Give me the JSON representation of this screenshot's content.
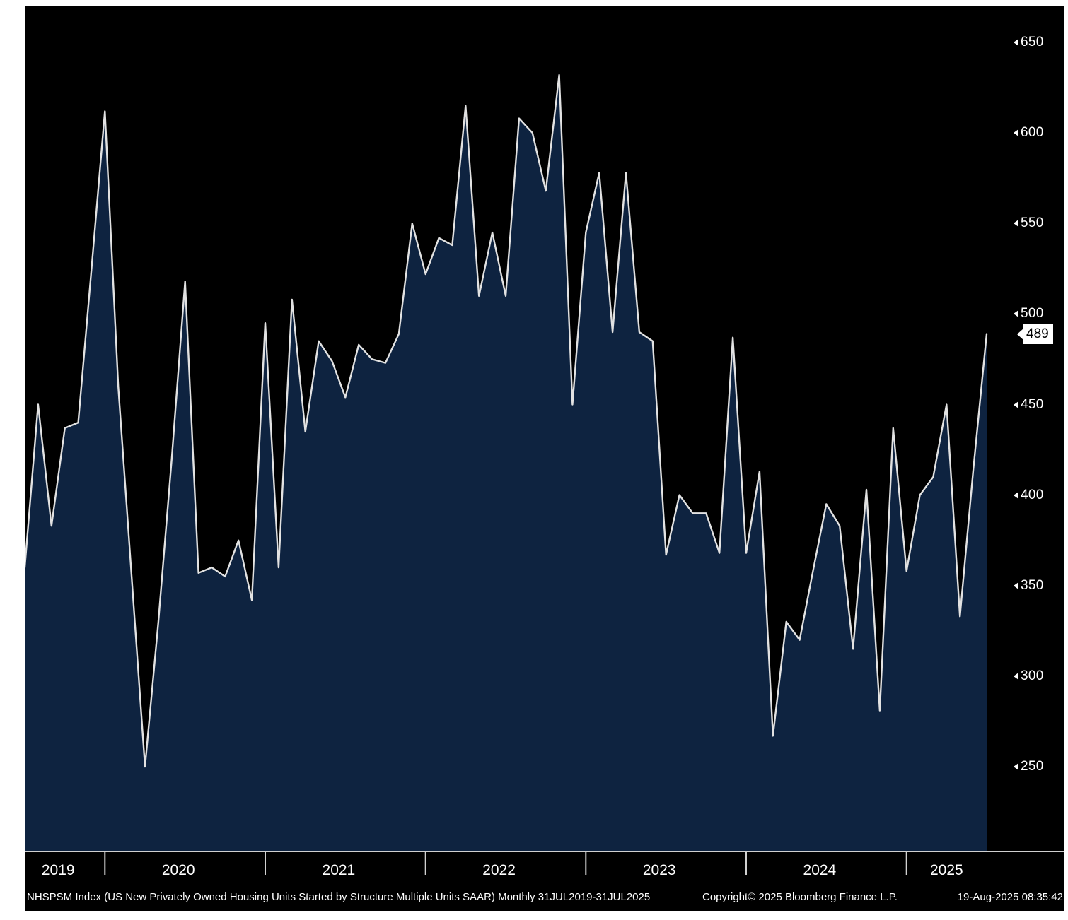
{
  "chart_data": {
    "type": "area",
    "security": "NHSPSM Index",
    "title": "NHSPSM Index (US New Privately Owned Housing Units Started by Structure Multiple Units SAAR)",
    "period": "Monthly 31JUL2019-31JUL2025",
    "grid": false,
    "legend": "none",
    "ylim": [
      250,
      650
    ],
    "y_ticks": [
      650,
      600,
      550,
      500,
      450,
      400,
      350,
      300,
      250
    ],
    "x_year_labels": [
      "2019",
      "2020",
      "2021",
      "2022",
      "2023",
      "2024",
      "2025"
    ],
    "last_value": 489,
    "line_color": "#e2e2e2",
    "area_color": "#0e2340",
    "background_color": "#000000",
    "axis_text_color": "#ffffff",
    "months": [
      "2019-07",
      "2019-08",
      "2019-09",
      "2019-10",
      "2019-11",
      "2019-12",
      "2020-01",
      "2020-02",
      "2020-03",
      "2020-04",
      "2020-05",
      "2020-06",
      "2020-07",
      "2020-08",
      "2020-09",
      "2020-10",
      "2020-11",
      "2020-12",
      "2021-01",
      "2021-02",
      "2021-03",
      "2021-04",
      "2021-05",
      "2021-06",
      "2021-07",
      "2021-08",
      "2021-09",
      "2021-10",
      "2021-11",
      "2021-12",
      "2022-01",
      "2022-02",
      "2022-03",
      "2022-04",
      "2022-05",
      "2022-06",
      "2022-07",
      "2022-08",
      "2022-09",
      "2022-10",
      "2022-11",
      "2022-12",
      "2023-01",
      "2023-02",
      "2023-03",
      "2023-04",
      "2023-05",
      "2023-06",
      "2023-07",
      "2023-08",
      "2023-09",
      "2023-10",
      "2023-11",
      "2023-12",
      "2024-01",
      "2024-02",
      "2024-03",
      "2024-04",
      "2024-05",
      "2024-06",
      "2024-07",
      "2024-08",
      "2024-09",
      "2024-10",
      "2024-11",
      "2024-12",
      "2025-01",
      "2025-02",
      "2025-03",
      "2025-04",
      "2025-05",
      "2025-06",
      "2025-07"
    ],
    "values": [
      360,
      450,
      383,
      437,
      440,
      525,
      612,
      460,
      355,
      250,
      330,
      420,
      518,
      357,
      360,
      355,
      375,
      342,
      495,
      360,
      508,
      435,
      485,
      474,
      454,
      483,
      475,
      473,
      489,
      550,
      522,
      542,
      538,
      615,
      510,
      545,
      510,
      608,
      600,
      568,
      632,
      450,
      545,
      578,
      490,
      578,
      490,
      485,
      367,
      400,
      390,
      390,
      368,
      487,
      368,
      413,
      267,
      330,
      320,
      358,
      395,
      383,
      315,
      403,
      281,
      437,
      358,
      400,
      410,
      450,
      333,
      414,
      489
    ]
  },
  "footer": {
    "description": "NHSPSM Index (US New Privately Owned Housing Units Started by Structure Multiple Units SAAR)  Monthly 31JUL2019-31JUL2025",
    "copyright": "Copyright© 2025 Bloomberg Finance L.P.",
    "timestamp": "19-Aug-2025 08:35:42"
  }
}
